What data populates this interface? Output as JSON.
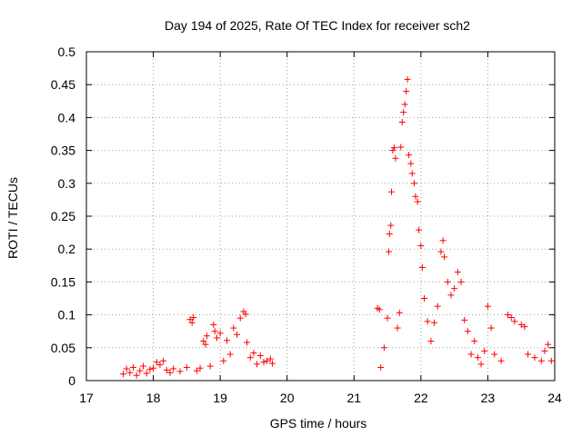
{
  "chart_data": {
    "type": "scatter",
    "title": "Day 194 of 2025, Rate Of TEC Index for receiver sch2",
    "xlabel": "GPS time / hours",
    "ylabel": "ROTI / TECUs",
    "xlim": [
      17,
      24
    ],
    "ylim": [
      0,
      0.5
    ],
    "xticks": [
      "17",
      "18",
      "19",
      "20",
      "21",
      "22",
      "23",
      "24"
    ],
    "yticks": [
      "0",
      "0.05",
      "0.1",
      "0.15",
      "0.2",
      "0.25",
      "0.3",
      "0.35",
      "0.4",
      "0.45",
      "0.5"
    ],
    "grid": true,
    "marker": "+",
    "color": "#ff0000",
    "points": [
      [
        17.55,
        0.01
      ],
      [
        17.6,
        0.018
      ],
      [
        17.65,
        0.012
      ],
      [
        17.7,
        0.02
      ],
      [
        17.75,
        0.008
      ],
      [
        17.8,
        0.015
      ],
      [
        17.85,
        0.022
      ],
      [
        17.9,
        0.011
      ],
      [
        17.95,
        0.017
      ],
      [
        18.0,
        0.019
      ],
      [
        18.05,
        0.028
      ],
      [
        18.1,
        0.024
      ],
      [
        18.15,
        0.03
      ],
      [
        18.2,
        0.016
      ],
      [
        18.25,
        0.012
      ],
      [
        18.3,
        0.018
      ],
      [
        18.4,
        0.014
      ],
      [
        18.5,
        0.02
      ],
      [
        18.55,
        0.093
      ],
      [
        18.58,
        0.088
      ],
      [
        18.6,
        0.096
      ],
      [
        18.65,
        0.015
      ],
      [
        18.7,
        0.019
      ],
      [
        18.75,
        0.06
      ],
      [
        18.78,
        0.055
      ],
      [
        18.8,
        0.068
      ],
      [
        18.85,
        0.022
      ],
      [
        18.9,
        0.085
      ],
      [
        18.92,
        0.075
      ],
      [
        18.95,
        0.065
      ],
      [
        19.0,
        0.072
      ],
      [
        19.05,
        0.03
      ],
      [
        19.1,
        0.061
      ],
      [
        19.15,
        0.04
      ],
      [
        19.2,
        0.08
      ],
      [
        19.25,
        0.07
      ],
      [
        19.3,
        0.095
      ],
      [
        19.35,
        0.105
      ],
      [
        19.38,
        0.101
      ],
      [
        19.4,
        0.058
      ],
      [
        19.45,
        0.035
      ],
      [
        19.5,
        0.042
      ],
      [
        19.55,
        0.025
      ],
      [
        19.6,
        0.038
      ],
      [
        19.65,
        0.028
      ],
      [
        19.7,
        0.03
      ],
      [
        19.75,
        0.033
      ],
      [
        19.78,
        0.026
      ],
      [
        21.35,
        0.11
      ],
      [
        21.38,
        0.108
      ],
      [
        21.4,
        0.02
      ],
      [
        21.45,
        0.05
      ],
      [
        21.5,
        0.095
      ],
      [
        21.52,
        0.196
      ],
      [
        21.53,
        0.223
      ],
      [
        21.55,
        0.236
      ],
      [
        21.56,
        0.287
      ],
      [
        21.58,
        0.35
      ],
      [
        21.6,
        0.354
      ],
      [
        21.62,
        0.338
      ],
      [
        21.65,
        0.08
      ],
      [
        21.68,
        0.103
      ],
      [
        21.7,
        0.355
      ],
      [
        21.72,
        0.393
      ],
      [
        21.74,
        0.408
      ],
      [
        21.76,
        0.42
      ],
      [
        21.78,
        0.44
      ],
      [
        21.8,
        0.458
      ],
      [
        21.82,
        0.343
      ],
      [
        21.85,
        0.33
      ],
      [
        21.87,
        0.315
      ],
      [
        21.9,
        0.3
      ],
      [
        21.92,
        0.28
      ],
      [
        21.95,
        0.272
      ],
      [
        21.97,
        0.229
      ],
      [
        22.0,
        0.205
      ],
      [
        22.02,
        0.172
      ],
      [
        22.05,
        0.125
      ],
      [
        22.1,
        0.09
      ],
      [
        22.15,
        0.06
      ],
      [
        22.2,
        0.088
      ],
      [
        22.25,
        0.113
      ],
      [
        22.3,
        0.196
      ],
      [
        22.33,
        0.213
      ],
      [
        22.35,
        0.188
      ],
      [
        22.4,
        0.15
      ],
      [
        22.45,
        0.13
      ],
      [
        22.5,
        0.14
      ],
      [
        22.55,
        0.165
      ],
      [
        22.6,
        0.15
      ],
      [
        22.65,
        0.092
      ],
      [
        22.7,
        0.075
      ],
      [
        22.75,
        0.04
      ],
      [
        22.8,
        0.06
      ],
      [
        22.85,
        0.035
      ],
      [
        22.9,
        0.025
      ],
      [
        22.95,
        0.045
      ],
      [
        23.0,
        0.113
      ],
      [
        23.05,
        0.08
      ],
      [
        23.1,
        0.04
      ],
      [
        23.2,
        0.03
      ],
      [
        23.3,
        0.1
      ],
      [
        23.35,
        0.096
      ],
      [
        23.4,
        0.09
      ],
      [
        23.5,
        0.085
      ],
      [
        23.55,
        0.082
      ],
      [
        23.6,
        0.04
      ],
      [
        23.7,
        0.035
      ],
      [
        23.8,
        0.03
      ],
      [
        23.85,
        0.045
      ],
      [
        23.9,
        0.055
      ],
      [
        23.95,
        0.03
      ]
    ]
  }
}
